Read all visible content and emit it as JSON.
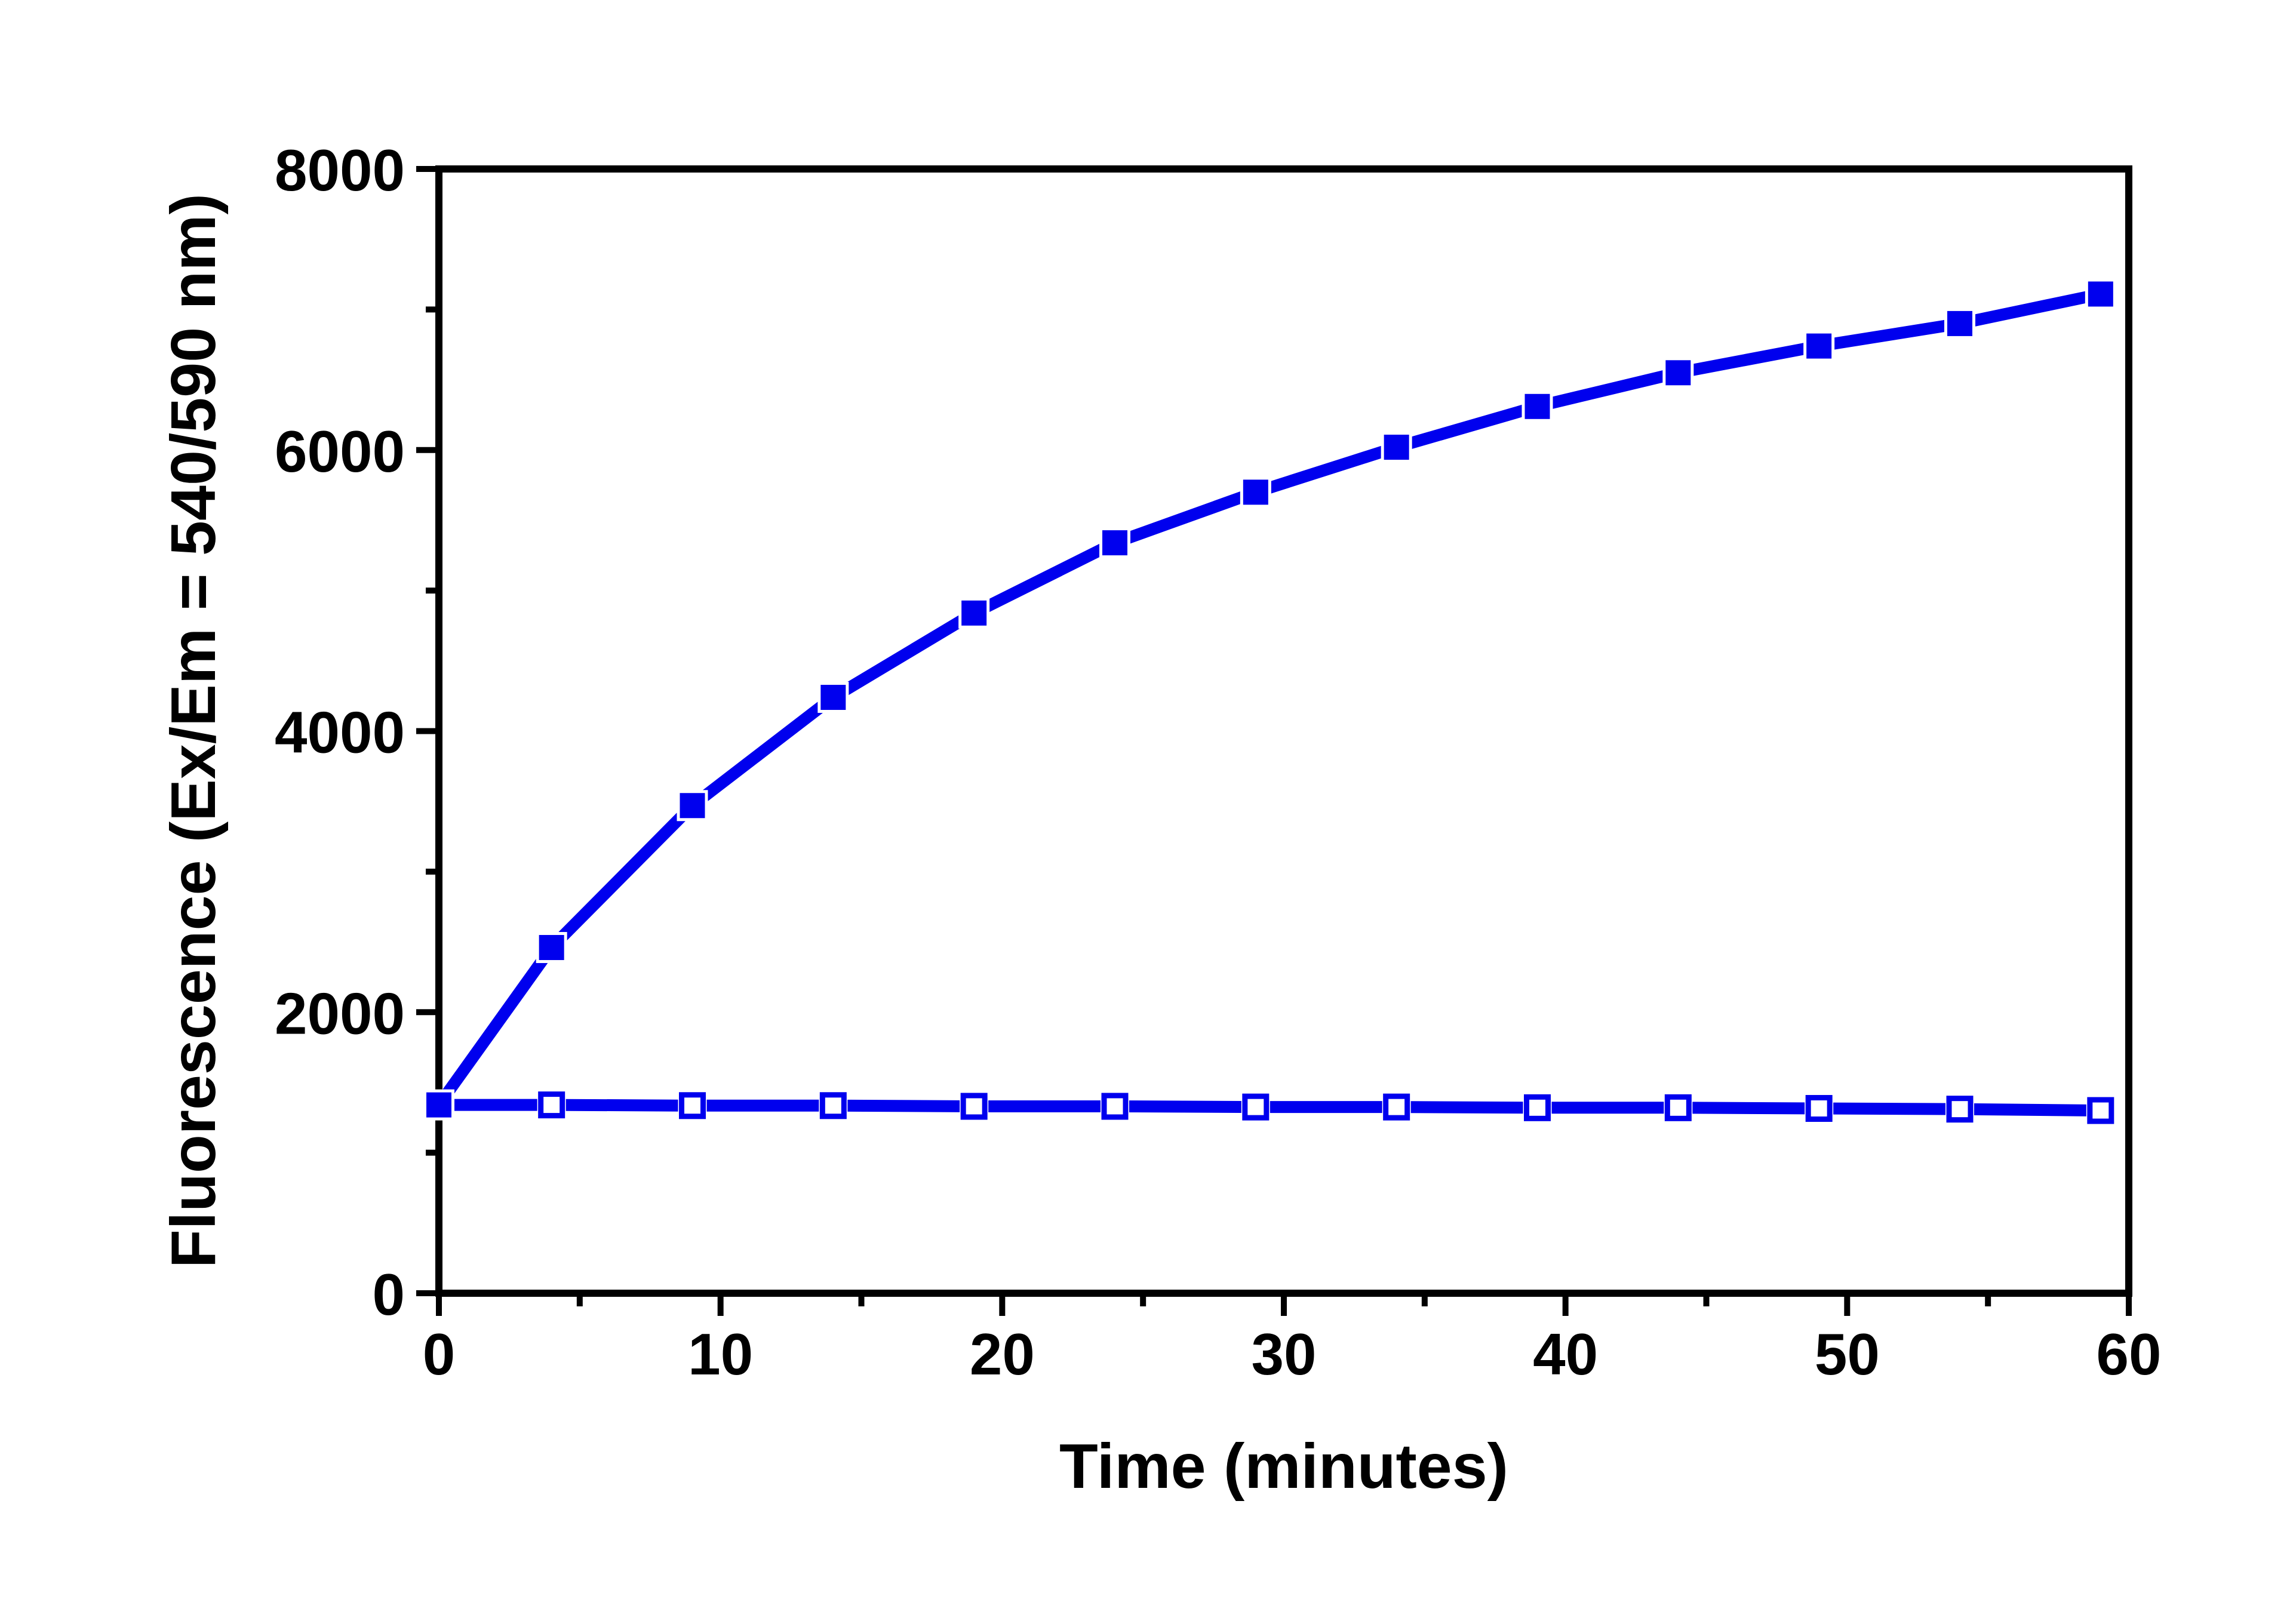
{
  "figure": {
    "background": "#ffffff",
    "axis_color": "#000000",
    "series_color": "#0000ee",
    "open_marker_fill": "#ffffff"
  },
  "chart_data": {
    "type": "line",
    "title": "",
    "xlabel": "Time (minutes)",
    "ylabel": "Fluorescence (Ex/Em = 540/590 nm)",
    "xlim": [
      0,
      60
    ],
    "ylim": [
      0,
      8000
    ],
    "x_major_ticks": [
      0,
      10,
      20,
      30,
      40,
      50,
      60
    ],
    "x_minor_tick_step": 5,
    "y_major_ticks": [
      0,
      2000,
      4000,
      6000,
      8000
    ],
    "y_minor_tick_step": 1000,
    "grid": false,
    "legend": "none",
    "frame": "box",
    "tick_direction": "out",
    "x": [
      0,
      4,
      9,
      14,
      19,
      24,
      29,
      34,
      39,
      44,
      49,
      54,
      59
    ],
    "series": [
      {
        "name": "series-open-squares",
        "marker": "open-square",
        "line_color": "#0000ee",
        "values": [
          1340,
          1340,
          1335,
          1335,
          1330,
          1330,
          1325,
          1325,
          1320,
          1320,
          1315,
          1310,
          1300
        ]
      },
      {
        "name": "series-filled-squares",
        "marker": "filled-square",
        "line_color": "#0000ee",
        "values": [
          1340,
          2460,
          3470,
          4240,
          4840,
          5340,
          5700,
          6020,
          6310,
          6550,
          6740,
          6900,
          7110
        ]
      }
    ]
  }
}
